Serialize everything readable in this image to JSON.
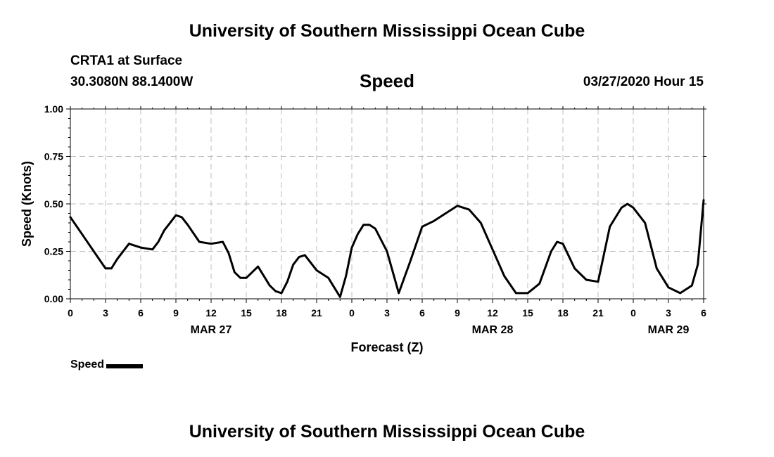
{
  "header": {
    "title_top": "University of Southern Mississippi Ocean Cube",
    "title_bottom": "University of Southern Mississippi Ocean Cube",
    "station": "CRTA1 at Surface",
    "coords": "30.3080N 88.1400W",
    "variable": "Speed",
    "datetime": "03/27/2020 Hour 15"
  },
  "legend": {
    "label": "Speed",
    "color": "#000000"
  },
  "chart_data": {
    "type": "line",
    "title": "Speed",
    "xlabel": "Forecast (Z)",
    "ylabel": "Speed (Knots)",
    "xlim": [
      0,
      54
    ],
    "ylim": [
      0,
      1
    ],
    "grid": true,
    "yticks": [
      0,
      0.25,
      0.5,
      0.75,
      1.0
    ],
    "ytick_labels": [
      "0.00",
      "0.25",
      "0.50",
      "0.75",
      "1.00"
    ],
    "xticks": [
      0,
      3,
      6,
      9,
      12,
      15,
      18,
      21,
      24,
      27,
      30,
      33,
      36,
      39,
      42,
      45,
      48,
      51,
      54
    ],
    "xtick_labels": [
      "0",
      "3",
      "6",
      "9",
      "12",
      "15",
      "18",
      "21",
      "0",
      "3",
      "6",
      "9",
      "12",
      "15",
      "18",
      "21",
      "0",
      "3",
      "6"
    ],
    "date_labels": [
      {
        "x": 12,
        "label": "MAR 27"
      },
      {
        "x": 36,
        "label": "MAR 28"
      },
      {
        "x": 51,
        "label": "MAR 29"
      }
    ],
    "series": [
      {
        "name": "Speed",
        "x": [
          0,
          1,
          2,
          3,
          3.5,
          4,
          5,
          6,
          7,
          7.5,
          8,
          9,
          9.5,
          10,
          11,
          12,
          13,
          13.5,
          14,
          14.5,
          15,
          16,
          17,
          17.5,
          18,
          18.5,
          19,
          19.5,
          20,
          21,
          22,
          23,
          23.5,
          24,
          24.5,
          25,
          25.5,
          26,
          27,
          28,
          29,
          30,
          31,
          32,
          33,
          34,
          35,
          36,
          37,
          38,
          39,
          40,
          41,
          41.5,
          42,
          43,
          44,
          45,
          46,
          47,
          47.5,
          48,
          49,
          50,
          51,
          52,
          53,
          53.5,
          54
        ],
        "values": [
          0.43,
          0.34,
          0.25,
          0.16,
          0.16,
          0.21,
          0.29,
          0.27,
          0.26,
          0.3,
          0.36,
          0.44,
          0.43,
          0.39,
          0.3,
          0.29,
          0.3,
          0.24,
          0.14,
          0.11,
          0.11,
          0.17,
          0.07,
          0.04,
          0.03,
          0.09,
          0.18,
          0.22,
          0.23,
          0.15,
          0.11,
          0.01,
          0.12,
          0.27,
          0.34,
          0.39,
          0.39,
          0.37,
          0.25,
          0.03,
          0.2,
          0.38,
          0.41,
          0.45,
          0.49,
          0.47,
          0.4,
          0.26,
          0.12,
          0.03,
          0.03,
          0.08,
          0.25,
          0.3,
          0.29,
          0.16,
          0.1,
          0.09,
          0.38,
          0.48,
          0.5,
          0.48,
          0.4,
          0.16,
          0.06,
          0.03,
          0.07,
          0.18,
          0.52
        ]
      }
    ]
  }
}
